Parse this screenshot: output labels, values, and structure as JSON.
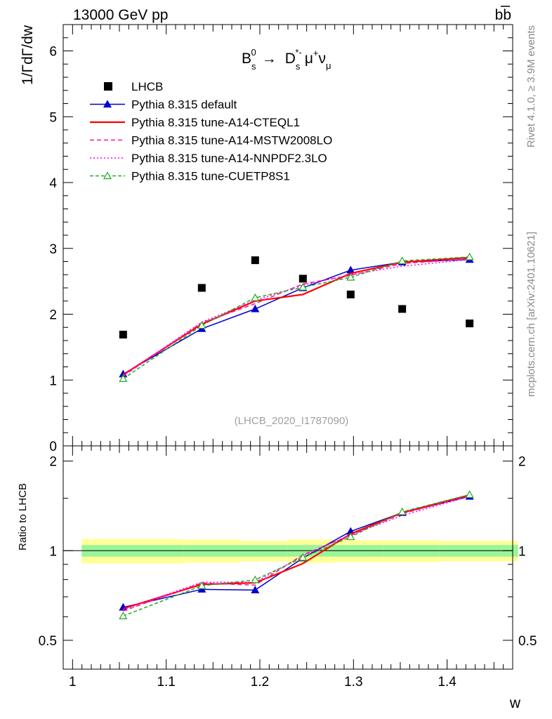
{
  "header": {
    "energy_label": "13000 GeV pp",
    "process_main": "b",
    "process_bar": "b"
  },
  "side_text": {
    "rivet": "Rivet 4.1.0, ≥ 3.9M events",
    "mcplots": "mcplots.cern.ch [arXiv:2401.10621]"
  },
  "chart_data": {
    "type": "line",
    "title_parts": {
      "B": "B",
      "B_sub": "s",
      "B_sup": "0",
      "arrow": "→",
      "D": "D",
      "D_sub": "s",
      "D_sup": "*-",
      "mu": "μ",
      "mu_sup": "+",
      "nu": "ν",
      "nu_sub": "μ"
    },
    "analysis_id": "(LHCB_2020_I1787090)",
    "xlabel": "w",
    "ylabel_main": "1/ΓdΓ/dw",
    "ylabel_ratio": "Ratio to LHCB",
    "xlim": [
      0.99,
      1.47
    ],
    "ylim_main": [
      0,
      6.4
    ],
    "ylim_ratio": [
      0.4,
      2.25
    ],
    "x_ticks": [
      {
        "value": 1.0,
        "label": "1"
      },
      {
        "value": 1.1,
        "label": "1.1"
      },
      {
        "value": 1.2,
        "label": "1.2"
      },
      {
        "value": 1.3,
        "label": "1.3"
      },
      {
        "value": 1.4,
        "label": "1.4"
      }
    ],
    "y_ticks_main": [
      {
        "value": 0,
        "label": "0"
      },
      {
        "value": 1,
        "label": "1"
      },
      {
        "value": 2,
        "label": "2"
      },
      {
        "value": 3,
        "label": "3"
      },
      {
        "value": 4,
        "label": "4"
      },
      {
        "value": 5,
        "label": "5"
      },
      {
        "value": 6,
        "label": "6"
      }
    ],
    "y_ticks_ratio": [
      {
        "value": 0.5,
        "label": "0.5"
      },
      {
        "value": 1,
        "label": "1"
      },
      {
        "value": 2,
        "label": "2"
      }
    ],
    "data": {
      "name": "LHCB",
      "x": [
        1.054,
        1.138,
        1.195,
        1.246,
        1.297,
        1.352,
        1.424
      ],
      "y": [
        1.69,
        2.4,
        2.82,
        2.54,
        2.3,
        2.08,
        1.86
      ],
      "bin_edges": [
        1.0,
        1.108,
        1.17,
        1.22,
        1.272,
        1.322,
        1.382,
        1.466
      ],
      "band_inner_rel": [
        0.045,
        0.045,
        0.045,
        0.045,
        0.045,
        0.045,
        0.045
      ],
      "band_outer_rel": [
        0.095,
        0.09,
        0.08,
        0.09,
        0.085,
        0.085,
        0.08
      ]
    },
    "series": [
      {
        "name": "Pythia 8.315 default",
        "color": "#0000cc",
        "dash": "",
        "marker": "triangle-filled",
        "values": [
          1.09,
          1.78,
          2.08,
          2.4,
          2.67,
          2.79,
          2.83
        ]
      },
      {
        "name": "Pythia 8.315 tune-A14-CTEQL1",
        "color": "#ff0000",
        "dash": "",
        "marker": "none",
        "values": [
          1.08,
          1.85,
          2.2,
          2.3,
          2.62,
          2.79,
          2.86
        ]
      },
      {
        "name": "Pythia 8.315 tune-A14-MSTW2008LO",
        "color": "#ff1493",
        "dash": "6,4",
        "marker": "none",
        "values": [
          1.06,
          1.87,
          2.16,
          2.46,
          2.59,
          2.77,
          2.84
        ]
      },
      {
        "name": "Pythia 8.315 tune-A14-NNPDF2.3LO",
        "color": "#ff00ff",
        "dash": "2,3",
        "marker": "none",
        "values": [
          1.07,
          1.88,
          2.21,
          2.44,
          2.6,
          2.73,
          2.83
        ]
      },
      {
        "name": "Pythia 8.315 tune-CUETP8S1",
        "color": "#22aa22",
        "dash": "5,3",
        "marker": "triangle-open",
        "values": [
          1.02,
          1.83,
          2.25,
          2.41,
          2.56,
          2.81,
          2.87
        ]
      }
    ]
  }
}
